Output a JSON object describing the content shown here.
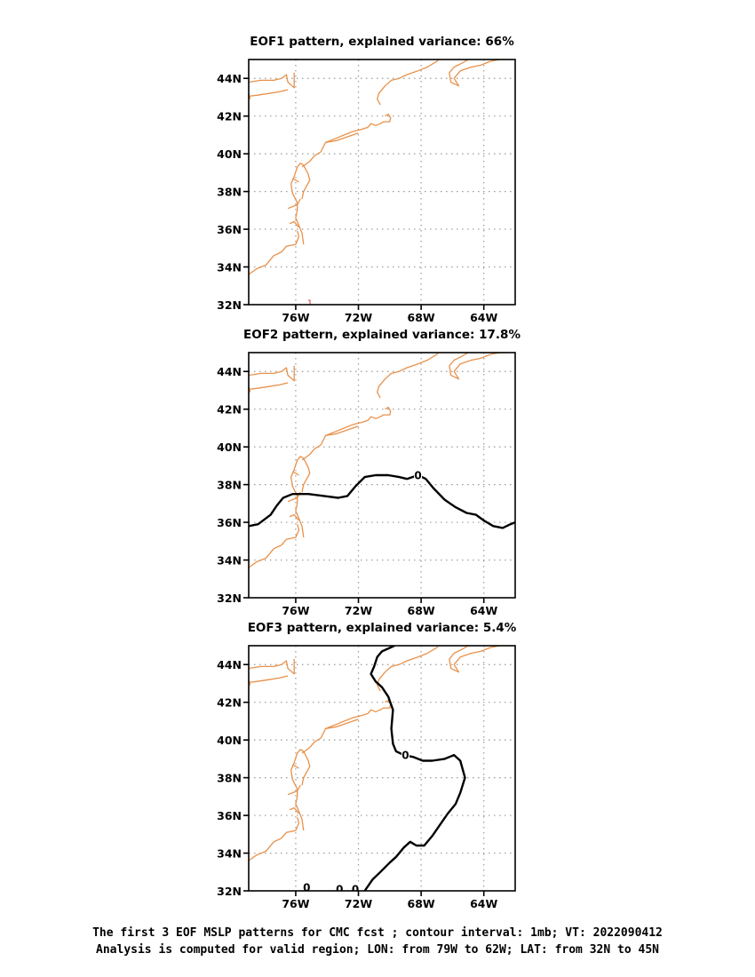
{
  "colors": {
    "coast": "#e8914a",
    "contour": "#000000",
    "grid": "#9a9a9a",
    "marker": "#d81e1e"
  },
  "caption": {
    "line1": "The first 3 EOF MSLP patterns for CMC fcst ; contour interval: 1mb; VT: 2022090412",
    "line2": "Analysis is computed for valid region; LON: from 79W to 62W; LAT: from 32N to 45N"
  },
  "chart_data": [
    {
      "type": "contour_map",
      "title": "EOF1 pattern, explained variance: 66%",
      "xlim": [
        -79,
        -62
      ],
      "ylim": [
        32,
        45
      ],
      "xticks": [
        {
          "v": -76,
          "label": "76W"
        },
        {
          "v": -72,
          "label": "72W"
        },
        {
          "v": -68,
          "label": "68W"
        },
        {
          "v": -64,
          "label": "64W"
        }
      ],
      "yticks": [
        {
          "v": 32,
          "label": "32N"
        },
        {
          "v": 34,
          "label": "34N"
        },
        {
          "v": 36,
          "label": "36N"
        },
        {
          "v": 38,
          "label": "38N"
        },
        {
          "v": 40,
          "label": "40N"
        },
        {
          "v": 42,
          "label": "42N"
        },
        {
          "v": 44,
          "label": "44N"
        }
      ],
      "grid": "dotted",
      "markers": [
        {
          "lon": -75.1,
          "lat": 32.1,
          "text": "1"
        }
      ],
      "contours": []
    },
    {
      "type": "contour_map",
      "title": "EOF2 pattern, explained variance: 17.8%",
      "xlim": [
        -79,
        -62
      ],
      "ylim": [
        32,
        45
      ],
      "xticks": [
        {
          "v": -76,
          "label": "76W"
        },
        {
          "v": -72,
          "label": "72W"
        },
        {
          "v": -68,
          "label": "68W"
        },
        {
          "v": -64,
          "label": "64W"
        }
      ],
      "yticks": [
        {
          "v": 32,
          "label": "32N"
        },
        {
          "v": 34,
          "label": "34N"
        },
        {
          "v": 36,
          "label": "36N"
        },
        {
          "v": 38,
          "label": "38N"
        },
        {
          "v": 40,
          "label": "40N"
        },
        {
          "v": 42,
          "label": "42N"
        },
        {
          "v": 44,
          "label": "44N"
        }
      ],
      "grid": "dotted",
      "markers": [],
      "contours": [
        {
          "level": 0,
          "points": [
            [
              -79,
              35.8
            ],
            [
              -78.4,
              35.9
            ],
            [
              -77.6,
              36.4
            ],
            [
              -77.2,
              36.9
            ],
            [
              -76.8,
              37.3
            ],
            [
              -76.2,
              37.5
            ],
            [
              -75.2,
              37.5
            ],
            [
              -74.2,
              37.4
            ],
            [
              -73.3,
              37.3
            ],
            [
              -72.7,
              37.4
            ],
            [
              -72.2,
              37.9
            ],
            [
              -71.6,
              38.4
            ],
            [
              -70.9,
              38.5
            ],
            [
              -70.1,
              38.5
            ],
            [
              -69.4,
              38.4
            ],
            [
              -68.9,
              38.3
            ],
            [
              -68.2,
              38.5
            ],
            [
              -67.7,
              38.3
            ],
            [
              -67.2,
              37.8
            ],
            [
              -66.5,
              37.2
            ],
            [
              -65.8,
              36.8
            ],
            [
              -65.1,
              36.5
            ],
            [
              -64.5,
              36.4
            ],
            [
              -64.0,
              36.1
            ],
            [
              -63.4,
              35.8
            ],
            [
              -62.8,
              35.7
            ],
            [
              -62.3,
              35.9
            ],
            [
              -62,
              36.0
            ]
          ],
          "labels": [
            {
              "lon": -68.2,
              "lat": 38.5,
              "text": "0"
            }
          ]
        }
      ]
    },
    {
      "type": "contour_map",
      "title": "EOF3 pattern, explained variance: 5.4%",
      "xlim": [
        -79,
        -62
      ],
      "ylim": [
        32,
        45
      ],
      "xticks": [
        {
          "v": -76,
          "label": "76W"
        },
        {
          "v": -72,
          "label": "72W"
        },
        {
          "v": -68,
          "label": "68W"
        },
        {
          "v": -64,
          "label": "64W"
        }
      ],
      "yticks": [
        {
          "v": 32,
          "label": "32N"
        },
        {
          "v": 34,
          "label": "34N"
        },
        {
          "v": 36,
          "label": "36N"
        },
        {
          "v": 38,
          "label": "38N"
        },
        {
          "v": 40,
          "label": "40N"
        },
        {
          "v": 42,
          "label": "42N"
        },
        {
          "v": 44,
          "label": "44N"
        }
      ],
      "grid": "dotted",
      "markers": [],
      "contours": [
        {
          "level": 0,
          "points": [
            [
              -69.7,
              45.0
            ],
            [
              -70.5,
              44.7
            ],
            [
              -70.8,
              44.4
            ],
            [
              -71.0,
              43.9
            ],
            [
              -71.2,
              43.5
            ],
            [
              -70.9,
              43.1
            ],
            [
              -70.5,
              42.8
            ],
            [
              -70.1,
              42.3
            ],
            [
              -69.8,
              41.6
            ],
            [
              -69.9,
              40.6
            ],
            [
              -69.8,
              39.8
            ],
            [
              -69.6,
              39.4
            ],
            [
              -69.1,
              39.2
            ],
            [
              -68.5,
              39.1
            ],
            [
              -67.9,
              38.9
            ],
            [
              -67.3,
              38.9
            ],
            [
              -66.5,
              39.0
            ],
            [
              -65.9,
              39.2
            ],
            [
              -65.5,
              38.9
            ],
            [
              -65.2,
              38.0
            ],
            [
              -65.5,
              37.2
            ],
            [
              -65.8,
              36.6
            ],
            [
              -66.3,
              36.1
            ],
            [
              -66.8,
              35.5
            ],
            [
              -67.3,
              34.9
            ],
            [
              -67.8,
              34.4
            ],
            [
              -68.3,
              34.4
            ],
            [
              -68.7,
              34.6
            ],
            [
              -69.1,
              34.3
            ],
            [
              -69.6,
              33.8
            ],
            [
              -70.0,
              33.5
            ],
            [
              -70.6,
              33.0
            ],
            [
              -71.1,
              32.6
            ],
            [
              -71.6,
              32.0
            ]
          ],
          "labels": [
            {
              "lon": -69.0,
              "lat": 39.2,
              "text": "0"
            }
          ]
        },
        {
          "level": 0,
          "points": [],
          "labels": [
            {
              "lon": -75.3,
              "lat": 32.2,
              "text": "0"
            }
          ]
        },
        {
          "level": 0,
          "points": [],
          "labels": [
            {
              "lon": -73.2,
              "lat": 32.1,
              "text": "0"
            }
          ]
        },
        {
          "level": 0,
          "points": [],
          "labels": [
            {
              "lon": -72.2,
              "lat": 32.1,
              "text": "0"
            }
          ]
        }
      ]
    }
  ]
}
